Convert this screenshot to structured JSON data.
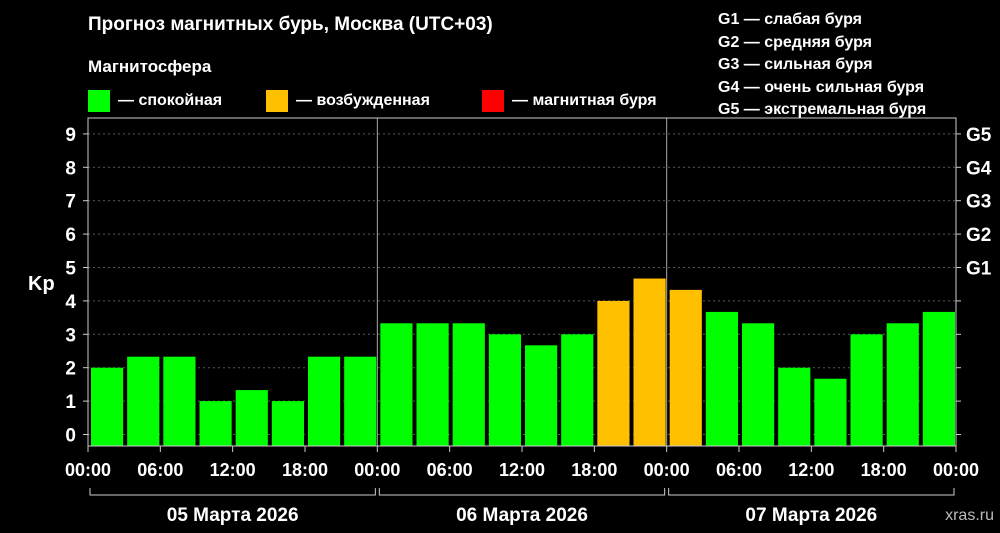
{
  "title": "Прогноз магнитных бурь, Москва (UTC+03)",
  "legend": {
    "heading": "Магнитосфера",
    "items": [
      {
        "label": "— спокойная",
        "color": "#00ff00"
      },
      {
        "label": "— возбужденная",
        "color": "#ffc000"
      },
      {
        "label": "— магнитная буря",
        "color": "#ff0000"
      }
    ]
  },
  "storm_scale": [
    "G1 — слабая буря",
    "G2 — средняя буря",
    "G3 — сильная буря",
    "G4 — очень сильная буря",
    "G5 — экстремальная буря"
  ],
  "watermark": "xras.ru",
  "chart_data": {
    "type": "bar",
    "ylabel": "Kp",
    "ylim": [
      0,
      9
    ],
    "y_ticks": [
      "0",
      "1",
      "2",
      "3",
      "4",
      "5",
      "6",
      "7",
      "8",
      "9"
    ],
    "right_axis_labels": [
      {
        "kp": 5,
        "label": "G1"
      },
      {
        "kp": 6,
        "label": "G2"
      },
      {
        "kp": 7,
        "label": "G3"
      },
      {
        "kp": 8,
        "label": "G4"
      },
      {
        "kp": 9,
        "label": "G5"
      }
    ],
    "x_tick_labels": [
      "00:00",
      "06:00",
      "12:00",
      "18:00",
      "00:00",
      "06:00",
      "12:00",
      "18:00",
      "00:00",
      "06:00",
      "12:00",
      "18:00",
      "00:00"
    ],
    "days": [
      "05 Марта 2026",
      "06 Марта 2026",
      "07 Марта 2026"
    ],
    "grid": true,
    "values": [
      2.0,
      2.33,
      2.33,
      1.0,
      1.33,
      1.0,
      2.33,
      2.33,
      3.33,
      3.33,
      3.33,
      3.0,
      2.67,
      3.0,
      4.0,
      4.67,
      4.33,
      3.67,
      3.33,
      2.0,
      1.67,
      3.0,
      3.33,
      3.67
    ],
    "colors": {
      "quiet": "#00ff00",
      "active": "#ffc000",
      "storm": "#ff0000"
    }
  }
}
